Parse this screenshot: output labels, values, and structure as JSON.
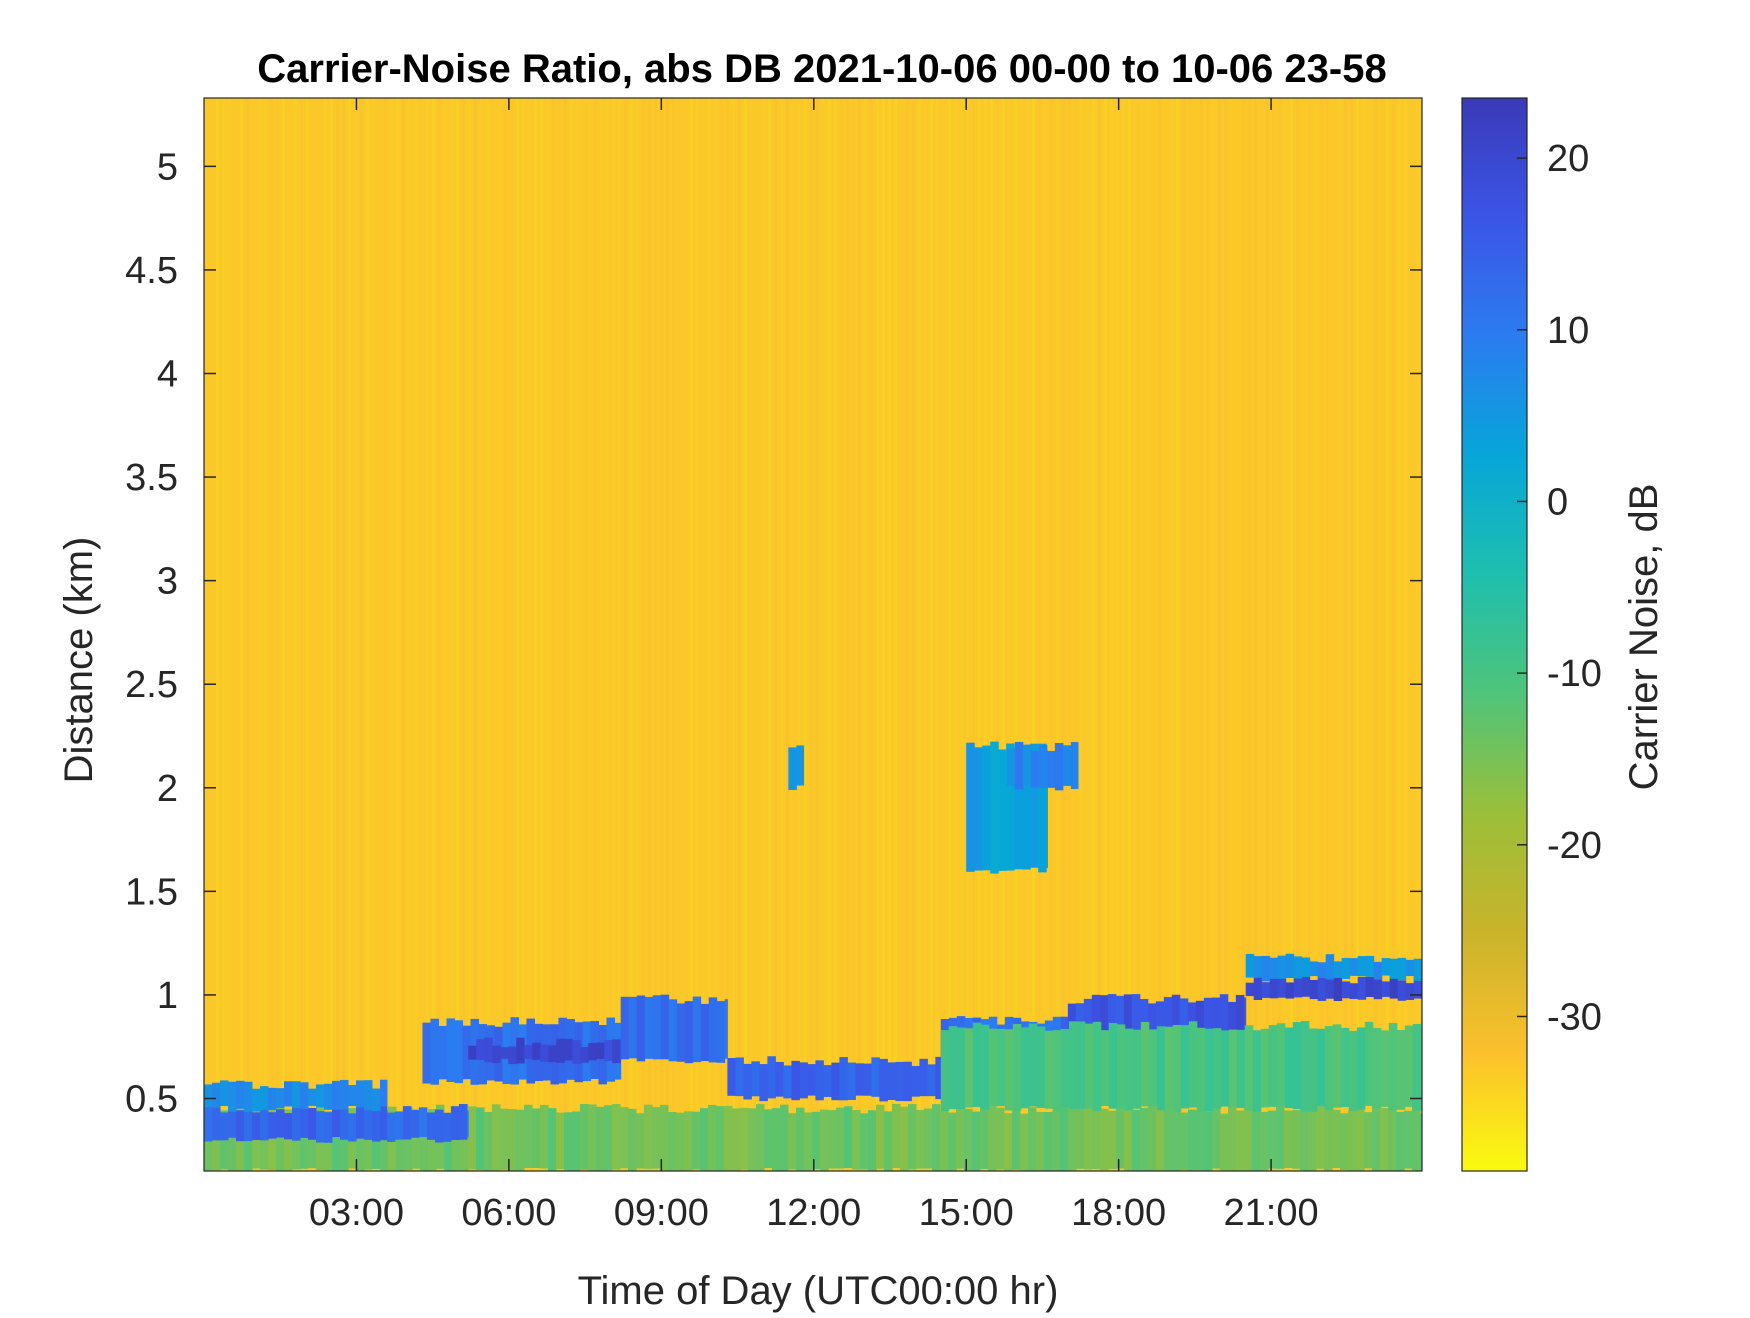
{
  "chart_data": {
    "type": "heatmap",
    "title": "Carrier-Noise Ratio, abs DB 2021-10-06 00-00 to 10-06 23-58",
    "xlabel": "Time of Day (UTC00:00 hr)",
    "ylabel": "Distance (km)",
    "x_range_hours": [
      0.0,
      23.97
    ],
    "x_ticks_hours": [
      3,
      6,
      9,
      12,
      15,
      18,
      21
    ],
    "x_tick_labels": [
      "03:00",
      "06:00",
      "09:00",
      "12:00",
      "15:00",
      "18:00",
      "21:00"
    ],
    "ylim": [
      0.15,
      5.33
    ],
    "y_ticks": [
      0.5,
      1,
      1.5,
      2,
      2.5,
      3,
      3.5,
      4,
      4.5,
      5
    ],
    "y_tick_labels": [
      "0.5",
      "1",
      "1.5",
      "2",
      "2.5",
      "3",
      "3.5",
      "4",
      "4.5",
      "5"
    ],
    "colorbar": {
      "label": "Carrier Noise, dB",
      "range": [
        -39,
        23.5
      ],
      "ticks": [
        -30,
        -20,
        -10,
        0,
        10,
        20
      ],
      "tick_labels": [
        "-30",
        "-20",
        "-10",
        "0",
        "10",
        "20"
      ],
      "colormap": "parula (reversed)",
      "colors": [
        "#f9fb0e",
        "#fbc02d",
        "#c9b42a",
        "#9bbf39",
        "#4fc47a",
        "#1ebfae",
        "#06a6d9",
        "#2b7cf0",
        "#3b55e6",
        "#3a3ab8"
      ]
    },
    "background_value_db": -33,
    "features": [
      {
        "description": "near-surface band",
        "x": [
          0.0,
          23.97
        ],
        "y": [
          0.15,
          0.45
        ],
        "value_db": -14
      },
      {
        "description": "low layer",
        "x": [
          0.0,
          3.6
        ],
        "y": [
          0.3,
          0.45
        ],
        "value_db": 14
      },
      {
        "description": "low layer",
        "x": [
          0.0,
          3.6
        ],
        "y": [
          0.45,
          0.57
        ],
        "value_db": 7
      },
      {
        "description": "low layer",
        "x": [
          3.6,
          5.2
        ],
        "y": [
          0.3,
          0.45
        ],
        "value_db": 12
      },
      {
        "description": "rising layer",
        "x": [
          4.3,
          8.2
        ],
        "y": [
          0.58,
          0.87
        ],
        "value_db": 12
      },
      {
        "description": "rising layer core",
        "x": [
          5.2,
          8.2
        ],
        "y": [
          0.68,
          0.77
        ],
        "value_db": 20
      },
      {
        "description": "mid-day layer",
        "x": [
          8.2,
          10.3
        ],
        "y": [
          0.68,
          0.98
        ],
        "value_db": 12
      },
      {
        "description": "mid-day layer",
        "x": [
          10.3,
          14.5
        ],
        "y": [
          0.5,
          0.68
        ],
        "value_db": 14
      },
      {
        "description": "afternoon layer",
        "x": [
          14.5,
          17.0
        ],
        "y": [
          0.68,
          0.88
        ],
        "value_db": 12
      },
      {
        "description": "evening layer",
        "x": [
          17.0,
          20.5
        ],
        "y": [
          0.8,
          0.98
        ],
        "value_db": 17
      },
      {
        "description": "evening layer",
        "x": [
          20.5,
          23.97
        ],
        "y": [
          0.98,
          1.08
        ],
        "value_db": 20
      },
      {
        "description": "evening layer top",
        "x": [
          20.5,
          23.97
        ],
        "y": [
          1.08,
          1.18
        ],
        "value_db": 6
      },
      {
        "description": "cloud feature",
        "x": [
          15.0,
          16.6
        ],
        "y": [
          1.6,
          2.2
        ],
        "value_db": 4
      },
      {
        "description": "cloud feature top",
        "x": [
          15.8,
          17.2
        ],
        "y": [
          2.0,
          2.2
        ],
        "value_db": 8
      },
      {
        "description": "isolated returns",
        "x": [
          11.5,
          11.8
        ],
        "y": [
          2.0,
          2.2
        ],
        "value_db": 4
      },
      {
        "description": "low boundary layer",
        "x": [
          14.5,
          23.97
        ],
        "y": [
          0.45,
          0.85
        ],
        "value_db": -10
      }
    ]
  }
}
